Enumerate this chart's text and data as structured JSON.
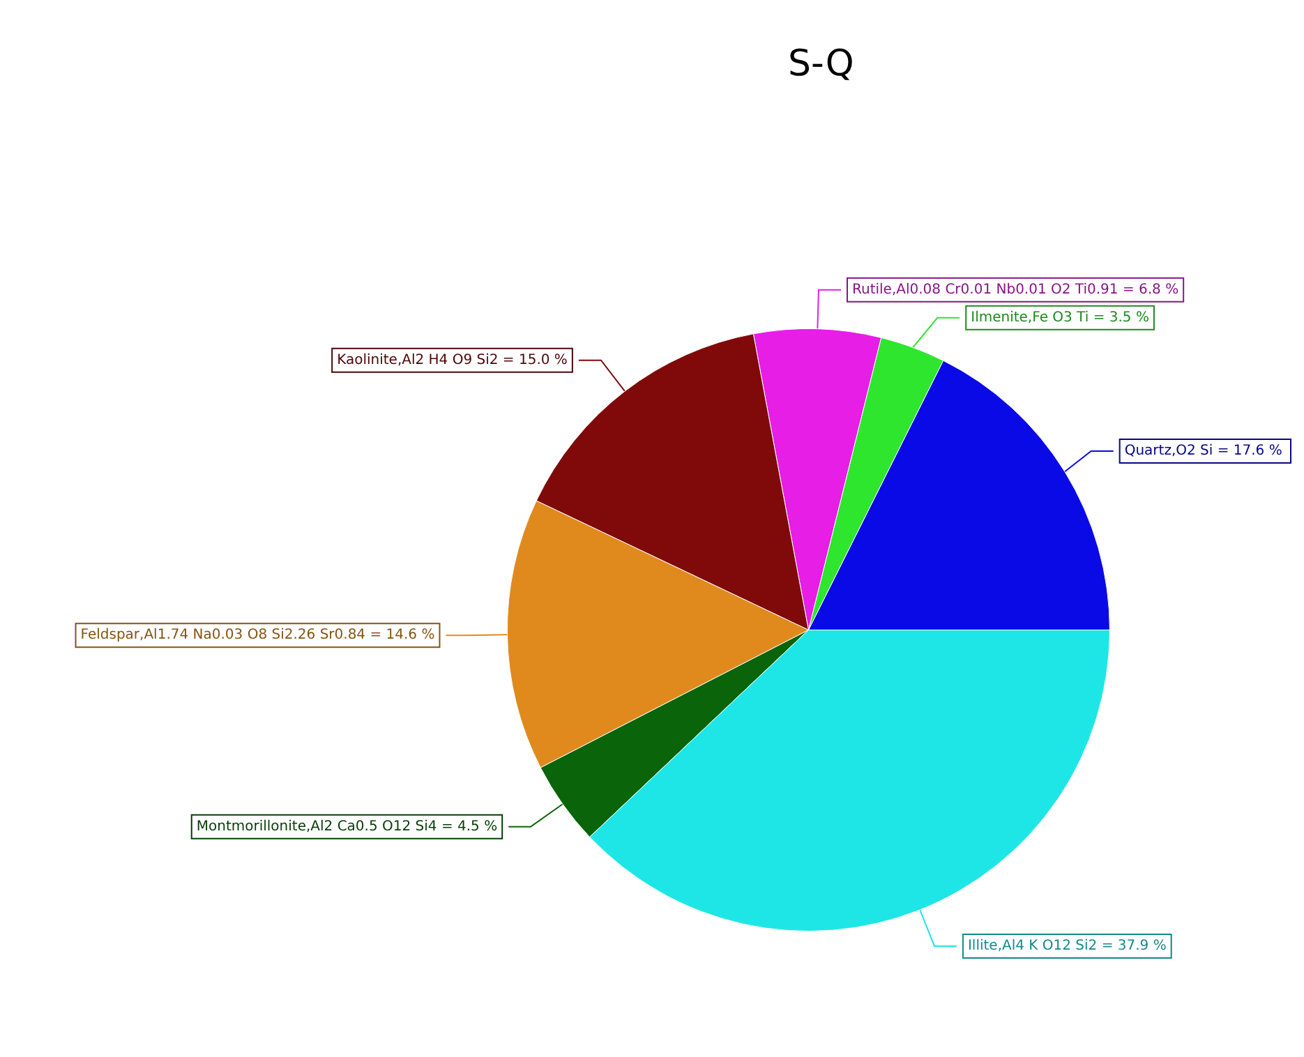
{
  "chart_data": {
    "type": "pie",
    "title": "S-Q",
    "categories": [
      "Quartz,O2 Si",
      "Ilmenite,Fe O3 Ti",
      "Rutile,Al0.08 Cr0.01 Nb0.01 O2 Ti0.91",
      "Kaolinite,Al2 H4 O9 Si2",
      "Feldspar,Al1.74 Na0.03 O8 Si2.26 Sr0.84",
      "Montmorillonite,Al2 Ca0.5 O12 Si4",
      "Illite,Al4 K O12 Si2"
    ],
    "values": [
      17.6,
      3.5,
      6.8,
      15.0,
      14.6,
      4.5,
      37.9
    ],
    "value_labels": [
      "= 17.6 %",
      "= 3.5 %",
      "= 6.8 %",
      "= 15.0 %",
      "= 14.6 %",
      "= 4.5 %",
      "= 37.9 %"
    ],
    "colors": [
      "#0a0ae6",
      "#2ee62e",
      "#e61ee6",
      "#800a0a",
      "#e08a1e",
      "#0a640a",
      "#1ee6e6"
    ],
    "legend": false
  }
}
